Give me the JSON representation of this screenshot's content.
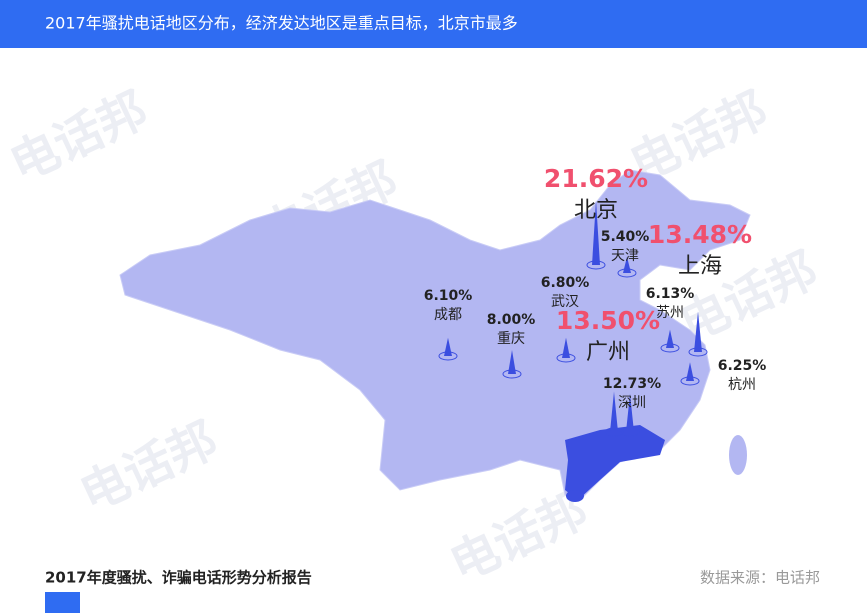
{
  "header": {
    "title": "2017年骚扰电话地区分布，经济发达地区是重点目标，北京市最多"
  },
  "watermark": "电话邦",
  "cities": [
    {
      "name": "北京",
      "value": 21.62,
      "label": "21.62%",
      "color": "#f0506e"
    },
    {
      "name": "天津",
      "value": 5.4,
      "label": "5.40%",
      "color": "#222222"
    },
    {
      "name": "上海",
      "value": 13.48,
      "label": "13.48%",
      "color": "#f0506e"
    },
    {
      "name": "苏州",
      "value": 6.13,
      "label": "6.13%",
      "color": "#222222"
    },
    {
      "name": "杭州",
      "value": 6.25,
      "label": "6.25%",
      "color": "#222222"
    },
    {
      "name": "广州",
      "value": 13.5,
      "label": "13.50%",
      "color": "#f0506e"
    },
    {
      "name": "深圳",
      "value": 12.73,
      "label": "12.73%",
      "color": "#222222"
    },
    {
      "name": "武汉",
      "value": 6.8,
      "label": "6.80%",
      "color": "#222222"
    },
    {
      "name": "成都",
      "value": 6.1,
      "label": "6.10%",
      "color": "#222222"
    },
    {
      "name": "重庆",
      "value": 8.0,
      "label": "8.00%",
      "color": "#222222"
    }
  ],
  "footer": {
    "report": "2017年度骚扰、诈骗电话形势分析报告",
    "source": "数据来源：电话邦"
  }
}
